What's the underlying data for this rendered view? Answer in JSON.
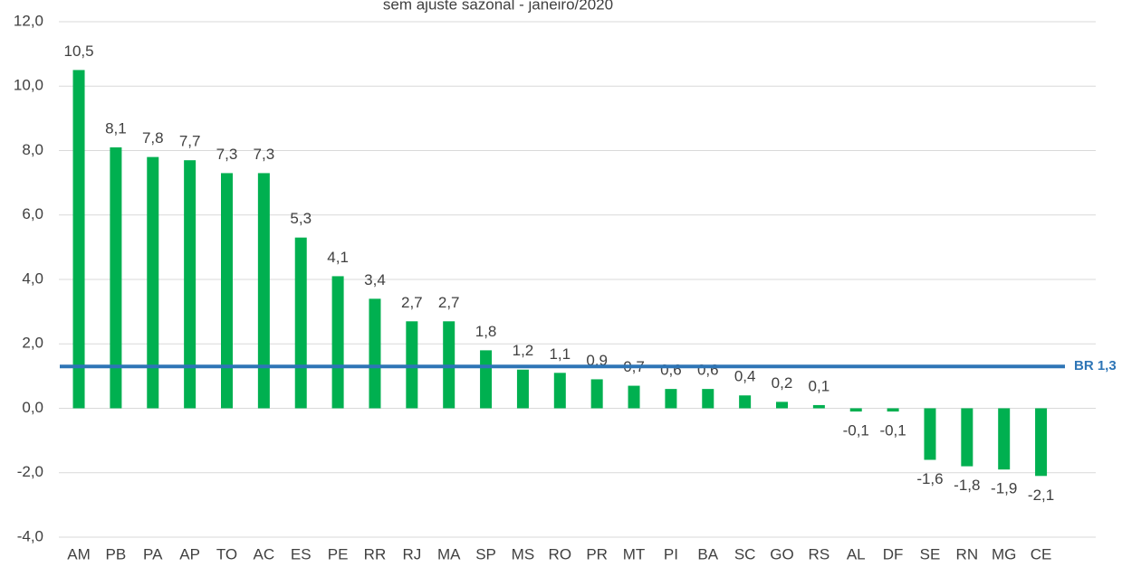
{
  "chart_data": {
    "type": "bar",
    "title": "sem ajuste sazonal - janeiro/2020",
    "categories": [
      "AM",
      "PB",
      "PA",
      "AP",
      "TO",
      "AC",
      "ES",
      "PE",
      "RR",
      "RJ",
      "MA",
      "SP",
      "MS",
      "RO",
      "PR",
      "MT",
      "PI",
      "BA",
      "SC",
      "GO",
      "RS",
      "AL",
      "DF",
      "SE",
      "RN",
      "MG",
      "CE"
    ],
    "values": [
      10.5,
      8.1,
      7.8,
      7.7,
      7.3,
      7.3,
      5.3,
      4.1,
      3.4,
      2.7,
      2.7,
      1.8,
      1.2,
      1.1,
      0.9,
      0.7,
      0.6,
      0.6,
      0.4,
      0.2,
      0.1,
      -0.1,
      -0.1,
      -1.6,
      -1.8,
      -1.9,
      -2.1
    ],
    "value_labels": [
      "10,5",
      "8,1",
      "7,8",
      "7,7",
      "7,3",
      "7,3",
      "5,3",
      "4,1",
      "3,4",
      "2,7",
      "2,7",
      "1,8",
      "1,2",
      "1,1",
      "0,9",
      "0,7",
      "0,6",
      "0,6",
      "0,4",
      "0,2",
      "0,1",
      "-0,1",
      "-0,1",
      "-1,6",
      "-1,8",
      "-1,9",
      "-2,1"
    ],
    "color": "#00b050",
    "ylim": [
      -4,
      12
    ],
    "yticks": [
      {
        "value": -4,
        "label": "-4,0"
      },
      {
        "value": -2,
        "label": "-2,0"
      },
      {
        "value": 0,
        "label": "0,0"
      },
      {
        "value": 2,
        "label": "2,0"
      },
      {
        "value": 4,
        "label": "4,0"
      },
      {
        "value": 6,
        "label": "6,0"
      },
      {
        "value": 8,
        "label": "8,0"
      },
      {
        "value": 10,
        "label": "10,0"
      },
      {
        "value": 12,
        "label": "12,0"
      }
    ],
    "grid": true,
    "reference_line": {
      "value": 1.3,
      "label": "BR 1,3",
      "color": "#2e75b6"
    }
  }
}
